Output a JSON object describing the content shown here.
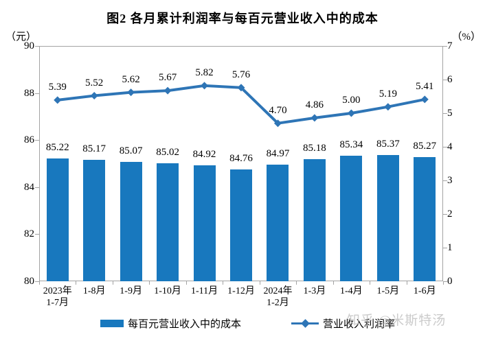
{
  "title": "图2  各月累计利润率与每百元营业收入中的成本",
  "watermark": "知乎 @米斯特汤",
  "chart_data": {
    "type": "bar",
    "subtype": "combo-bar-line-dual-axis",
    "categories": [
      "2023年\n1-7月",
      "1-8月",
      "1-9月",
      "1-10月",
      "1-11月",
      "1-12月",
      "2024年\n1-2月",
      "1-3月",
      "1-4月",
      "1-5月",
      "1-6月"
    ],
    "series": [
      {
        "name": "每百元营业收入中的成本",
        "type": "bar",
        "axis": "left",
        "color": "#1878be",
        "values": [
          85.22,
          85.17,
          85.07,
          85.02,
          84.92,
          84.76,
          84.97,
          85.18,
          85.34,
          85.37,
          85.27
        ]
      },
      {
        "name": "营业收入利润率",
        "type": "line",
        "axis": "right",
        "color": "#2e75b6",
        "marker": "diamond",
        "values": [
          5.39,
          5.52,
          5.62,
          5.67,
          5.82,
          5.76,
          4.7,
          4.86,
          5.0,
          5.19,
          5.41
        ]
      }
    ],
    "left_axis": {
      "unit": "（元）",
      "min": 80,
      "max": 90,
      "ticks": [
        90,
        88,
        86,
        84,
        82,
        80
      ]
    },
    "right_axis": {
      "unit": "（%）",
      "min": 0,
      "max": 7,
      "ticks": [
        7,
        6,
        5,
        4,
        3,
        2,
        1,
        0
      ]
    },
    "grid": false,
    "legend_position": "bottom",
    "plot_border_color": "#a3a3a3"
  }
}
